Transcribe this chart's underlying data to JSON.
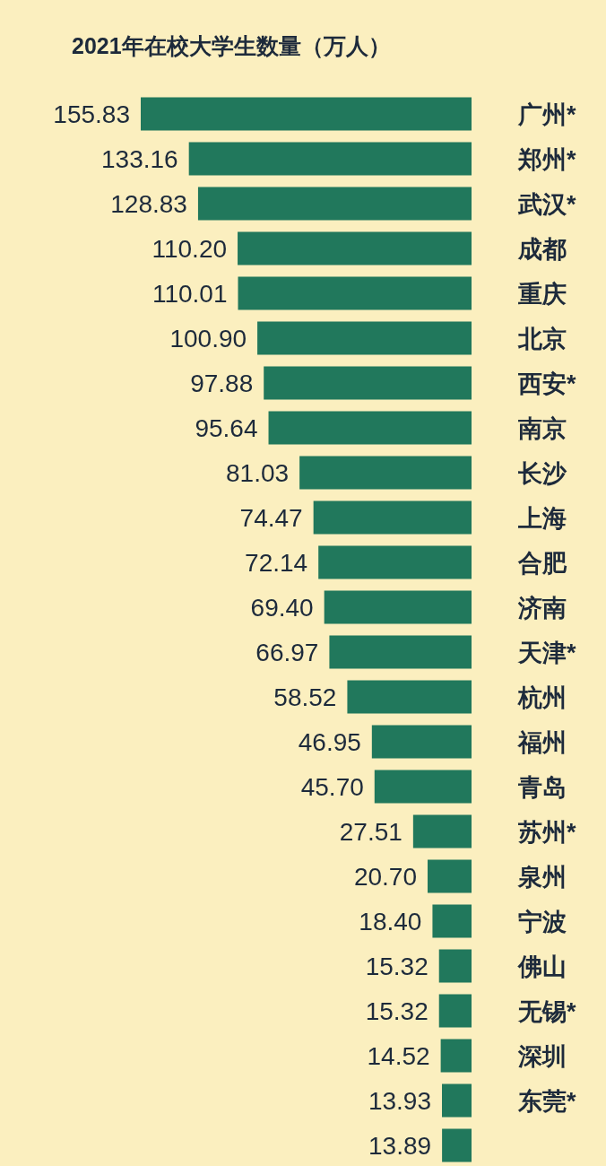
{
  "chart_data": {
    "type": "bar",
    "orientation": "horizontal",
    "title": "2021年在校大学生数量（万人）",
    "categories": [
      "广州*",
      "郑州*",
      "武汉*",
      "成都",
      "重庆",
      "北京",
      "西安*",
      "南京",
      "长沙",
      "上海",
      "合肥",
      "济南",
      "天津*",
      "杭州",
      "福州",
      "青岛",
      "苏州*",
      "泉州",
      "宁波",
      "佛山",
      "无锡*",
      "深圳",
      "东莞*",
      null
    ],
    "values": [
      155.83,
      133.16,
      128.83,
      110.2,
      110.01,
      100.9,
      97.88,
      95.64,
      81.03,
      74.47,
      72.14,
      69.4,
      66.97,
      58.52,
      46.95,
      45.7,
      27.51,
      20.7,
      18.4,
      15.32,
      15.32,
      14.52,
      13.93,
      13.89
    ],
    "value_labels": [
      "155.83",
      "133.16",
      "128.83",
      "110.20",
      "110.01",
      "100.90",
      "97.88",
      "95.64",
      "81.03",
      "74.47",
      "72.14",
      "69.40",
      "66.97",
      "58.52",
      "46.95",
      "45.70",
      "27.51",
      "20.70",
      "18.40",
      "15.32",
      "15.32",
      "14.52",
      "13.93",
      "13.89"
    ],
    "color": "#21785c"
  }
}
